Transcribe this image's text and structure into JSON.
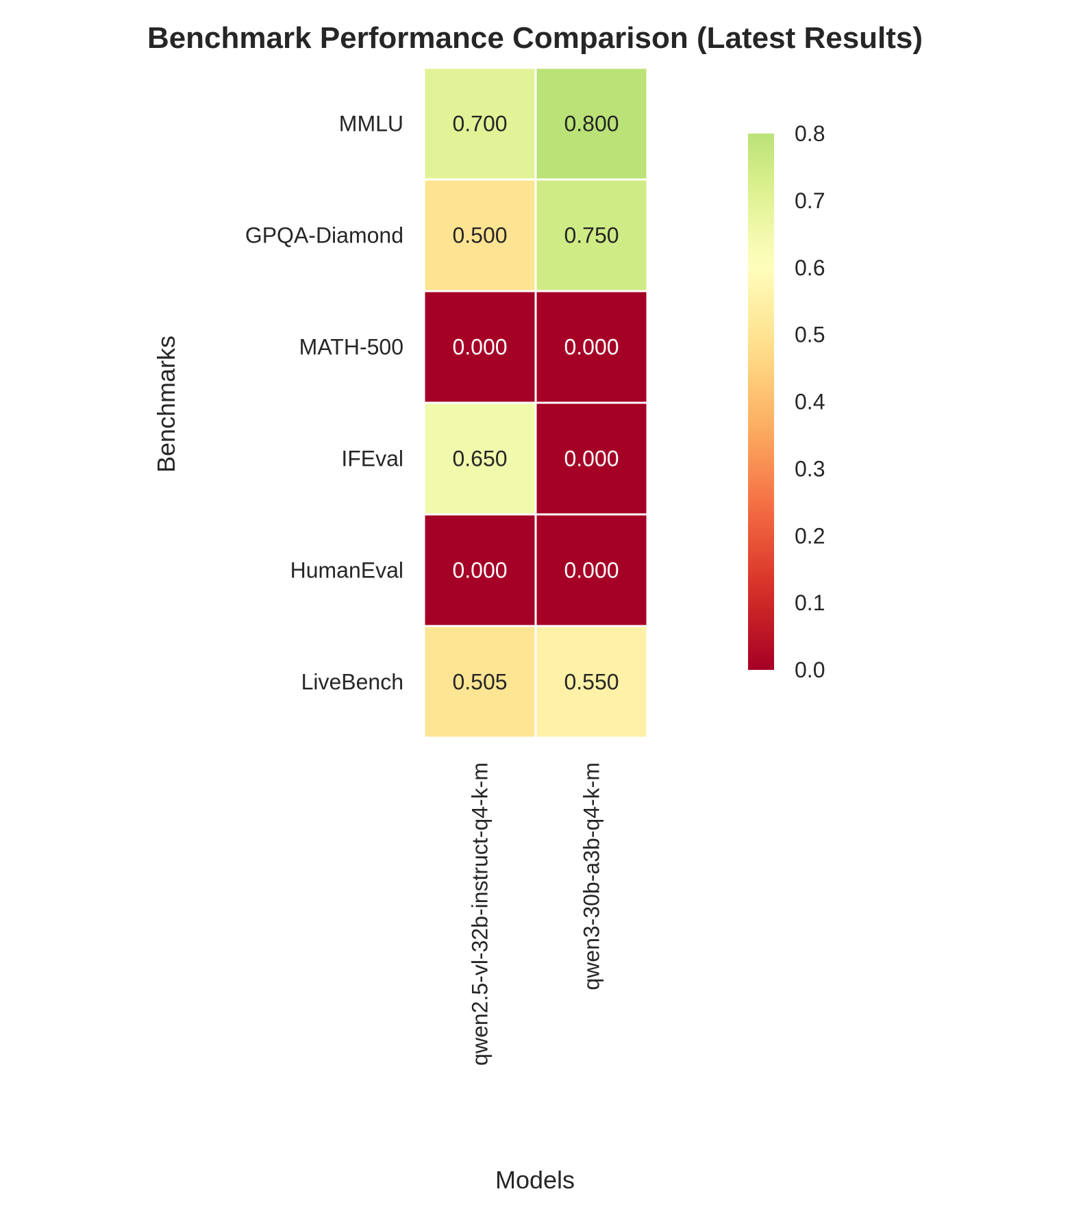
{
  "chart_data": {
    "type": "heatmap",
    "title": "Benchmark Performance Comparison (Latest Results)",
    "xlabel": "Models",
    "ylabel": "Benchmarks",
    "x_categories": [
      "qwen2.5-vl-32b-instruct-q4-k-m",
      "qwen3-30b-a3b-q4-k-m"
    ],
    "y_categories": [
      "MMLU",
      "GPQA-Diamond",
      "MATH-500",
      "IFEval",
      "HumanEval",
      "LiveBench"
    ],
    "values": [
      [
        0.7,
        0.8
      ],
      [
        0.5,
        0.75
      ],
      [
        0.0,
        0.0
      ],
      [
        0.65,
        0.0
      ],
      [
        0.0,
        0.0
      ],
      [
        0.505,
        0.55
      ]
    ],
    "cell_labels": [
      [
        "0.700",
        "0.800"
      ],
      [
        "0.500",
        "0.750"
      ],
      [
        "0.000",
        "0.000"
      ],
      [
        "0.650",
        "0.000"
      ],
      [
        "0.000",
        "0.000"
      ],
      [
        "0.505",
        "0.550"
      ]
    ],
    "colormap": "RdYlGn",
    "value_range": [
      0.0,
      0.8
    ],
    "colorbar": {
      "ticks": [
        0.0,
        0.1,
        0.2,
        0.3,
        0.4,
        0.5,
        0.6,
        0.7,
        0.8
      ],
      "tick_labels": [
        "0.0",
        "0.1",
        "0.2",
        "0.3",
        "0.4",
        "0.5",
        "0.6",
        "0.7",
        "0.8"
      ],
      "placement": "right"
    },
    "grid": false
  }
}
